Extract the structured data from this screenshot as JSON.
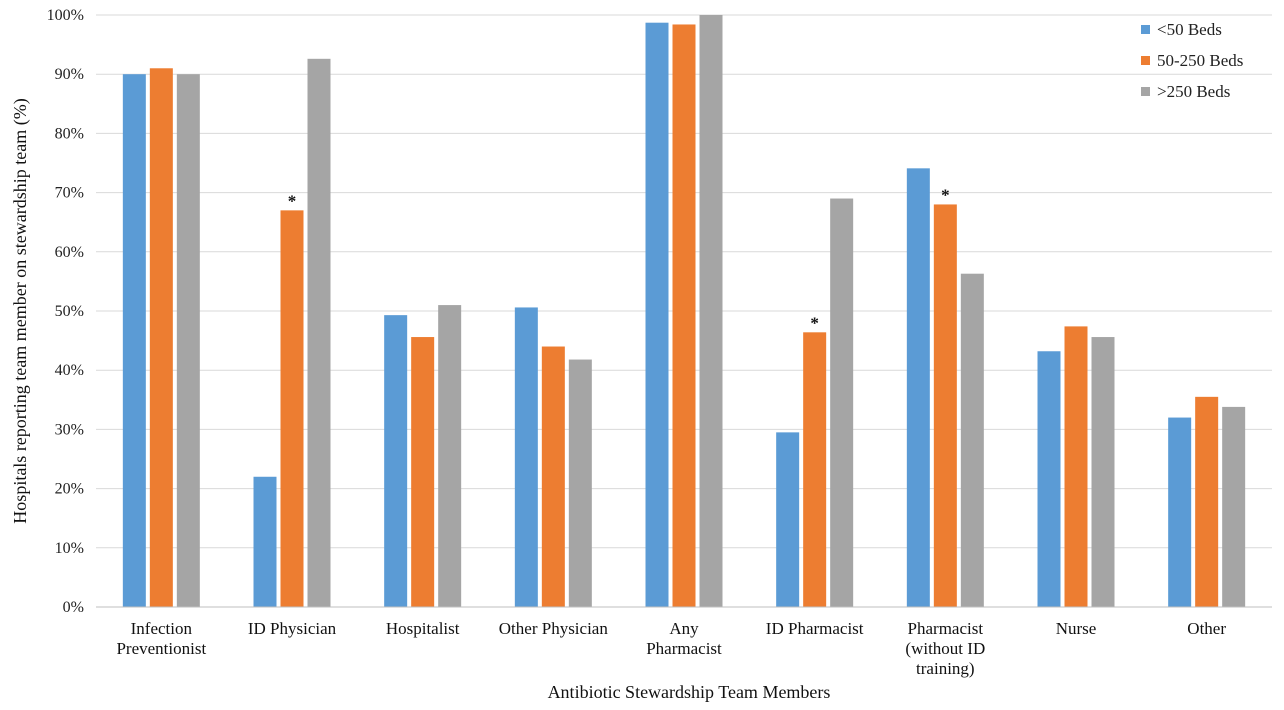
{
  "chart_data": {
    "type": "bar",
    "xlabel": "Antibiotic Stewardship Team Members",
    "ylabel": "Hospitals reporting  team member on stewardship team (%)",
    "ylim": [
      0,
      100
    ],
    "ytick_step": 10,
    "ytick_suffix": "%",
    "grid": true,
    "legend_position": "top-right",
    "categories": [
      [
        "Infection",
        "Preventionist"
      ],
      [
        "ID Physician"
      ],
      [
        "Hospitalist"
      ],
      [
        "Other Physician"
      ],
      [
        "Any",
        "Pharmacist"
      ],
      [
        "ID Pharmacist"
      ],
      [
        "Pharmacist",
        "(without ID",
        "training)"
      ],
      [
        "Nurse"
      ],
      [
        "Other"
      ]
    ],
    "series": [
      {
        "name": "<50 Beds",
        "color": "#5b9bd5",
        "values": [
          90.0,
          22.0,
          49.3,
          50.6,
          98.7,
          29.5,
          74.1,
          43.2,
          32.0
        ]
      },
      {
        "name": "50-250 Beds",
        "color": "#ed7d31",
        "values": [
          91.0,
          67.0,
          45.6,
          44.0,
          98.4,
          46.4,
          68.0,
          47.4,
          35.5
        ]
      },
      {
        "name": ">250 Beds",
        "color": "#a5a5a5",
        "values": [
          90.0,
          92.6,
          51.0,
          41.8,
          100.0,
          69.0,
          56.3,
          45.6,
          33.8
        ]
      }
    ],
    "annotations": [
      {
        "category_index": 1,
        "series_index": 1,
        "text": "*"
      },
      {
        "category_index": 5,
        "series_index": 1,
        "text": "*"
      },
      {
        "category_index": 6,
        "series_index": 1,
        "text": "*"
      }
    ]
  }
}
